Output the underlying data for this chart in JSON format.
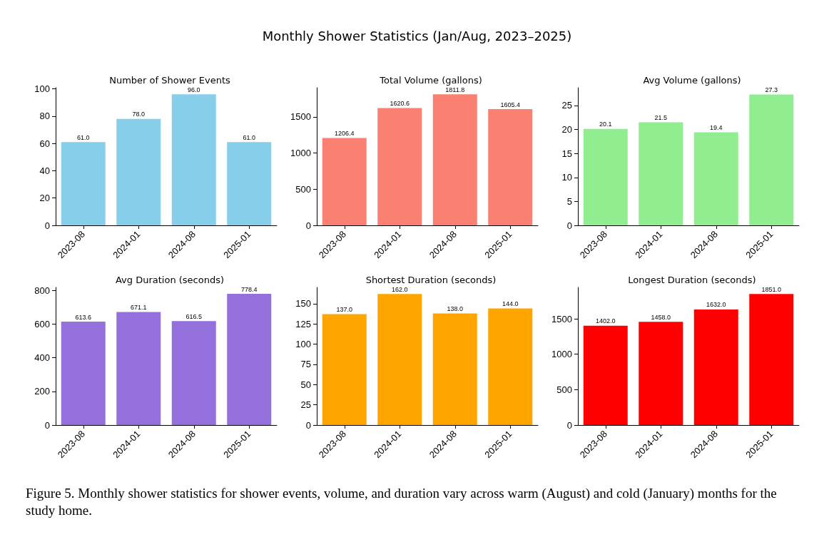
{
  "chart_data": [
    {
      "type": "other",
      "title": "Monthly Shower Statistics (Jan/Aug, 2023–2025)",
      "annotations": [
        "Figure 5. Monthly shower statistics for shower events, volume, and duration vary across warm (August) and cold (January) months for the study home."
      ]
    },
    {
      "type": "bar",
      "title": "Number of Shower Events",
      "categories": [
        "2023-08",
        "2024-01",
        "2024-08",
        "2025-01"
      ],
      "values": [
        61,
        78,
        96,
        61
      ],
      "value_labels": [
        "61.0",
        "78.0",
        "96.0",
        "61.0"
      ],
      "color": "#87ceeb",
      "ylim": [
        0,
        100.8
      ],
      "yticks": [
        0,
        20,
        40,
        60,
        80,
        100
      ],
      "grid": false
    },
    {
      "type": "bar",
      "title": "Total Volume (gallons)",
      "categories": [
        "2023-08",
        "2024-01",
        "2024-08",
        "2025-01"
      ],
      "values": [
        1206.4,
        1620.6,
        1811.8,
        1605.4
      ],
      "value_labels": [
        "1206.4",
        "1620.6",
        "1811.8",
        "1605.4"
      ],
      "color": "#fa8072",
      "ylim": [
        0,
        1902
      ],
      "yticks": [
        0,
        500,
        1000,
        1500
      ],
      "grid": false
    },
    {
      "type": "bar",
      "title": "Avg Volume (gallons)",
      "categories": [
        "2023-08",
        "2024-01",
        "2024-08",
        "2025-01"
      ],
      "values": [
        20.1,
        21.5,
        19.4,
        27.3
      ],
      "value_labels": [
        "20.1",
        "21.5",
        "19.4",
        "27.3"
      ],
      "color": "#90ee90",
      "ylim": [
        0,
        28.7
      ],
      "yticks": [
        0,
        5,
        10,
        15,
        20,
        25
      ],
      "grid": false
    },
    {
      "type": "bar",
      "title": "Avg Duration (seconds)",
      "categories": [
        "2023-08",
        "2024-01",
        "2024-08",
        "2025-01"
      ],
      "values": [
        613.6,
        671.1,
        616.5,
        778.4
      ],
      "value_labels": [
        "613.6",
        "671.1",
        "616.5",
        "778.4"
      ],
      "color": "#9370db",
      "ylim": [
        0,
        817
      ],
      "yticks": [
        0,
        200,
        400,
        600,
        800
      ],
      "grid": false
    },
    {
      "type": "bar",
      "title": "Shortest Duration (seconds)",
      "categories": [
        "2023-08",
        "2024-01",
        "2024-08",
        "2025-01"
      ],
      "values": [
        137,
        162,
        138,
        144
      ],
      "value_labels": [
        "137.0",
        "162.0",
        "138.0",
        "144.0"
      ],
      "color": "#ffa500",
      "ylim": [
        0,
        170.1
      ],
      "yticks": [
        0,
        25,
        50,
        75,
        100,
        125,
        150
      ],
      "grid": false
    },
    {
      "type": "bar",
      "title": "Longest Duration (seconds)",
      "categories": [
        "2023-08",
        "2024-01",
        "2024-08",
        "2025-01"
      ],
      "values": [
        1402,
        1458,
        1632,
        1851
      ],
      "value_labels": [
        "1402.0",
        "1458.0",
        "1632.0",
        "1851.0"
      ],
      "color": "#ff0000",
      "ylim": [
        0,
        1943.6
      ],
      "yticks": [
        0,
        500,
        1000,
        1500
      ],
      "grid": false
    }
  ]
}
